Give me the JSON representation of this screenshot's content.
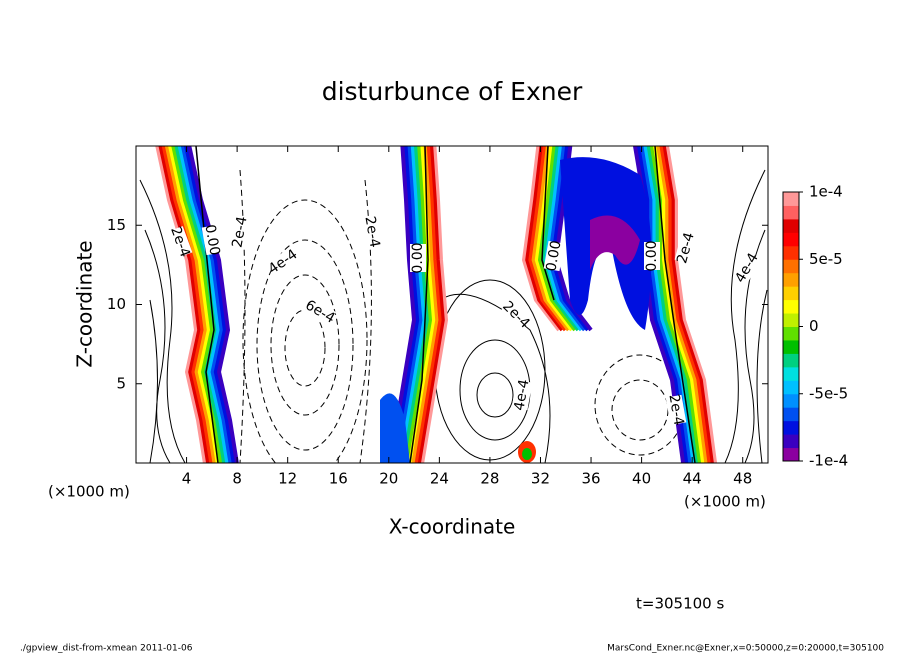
{
  "chart_data": {
    "type": "contour",
    "title": "disturbunce of Exner",
    "x_label": "X-coordinate",
    "y_label": "Z-coordinate",
    "x_unit": "(×1000 m)",
    "xlim": [
      0,
      50
    ],
    "ylim": [
      0,
      20
    ],
    "xticks": [
      4,
      8,
      12,
      16,
      20,
      24,
      28,
      32,
      36,
      40,
      44,
      48
    ],
    "yticks": [
      5,
      10,
      15
    ],
    "colorbar": {
      "lim": [
        -0.0001,
        0.0001
      ],
      "ticks": [
        {
          "value": 0.0001,
          "label": "1e-4"
        },
        {
          "value": 5e-05,
          "label": "5e-5"
        },
        0,
        {
          "value": -5e-05,
          "label": "-5e-5"
        },
        {
          "value": -0.0001,
          "label": "-1e-4"
        }
      ],
      "colors": [
        "#8b00a0",
        "#3a00c0",
        "#0010e0",
        "#0050f0",
        "#0090ff",
        "#00c0ff",
        "#00e0e0",
        "#00d080",
        "#00c000",
        "#60e000",
        "#c0f000",
        "#ffff00",
        "#ffd000",
        "#ffa000",
        "#ff7000",
        "#ff3000",
        "#ff0000",
        "#e00000",
        "#ff6060",
        "#ff9898"
      ]
    },
    "contour_labels": [
      "2e-4",
      "0.00",
      "2e-4",
      "4e-4",
      "6e-4",
      "2e-4",
      "0.00",
      "2e-4",
      "4e-4",
      "0.00",
      "0.00",
      "2e-4",
      "4e-4",
      "2e-4"
    ],
    "time_label": "t=305100 s",
    "footer_left": "./gpview_dist-from-xmean  2011-01-06",
    "footer_right": "MarsCond_Exner.nc@Exner,x=0:50000,z=0:20000,t=305100"
  }
}
